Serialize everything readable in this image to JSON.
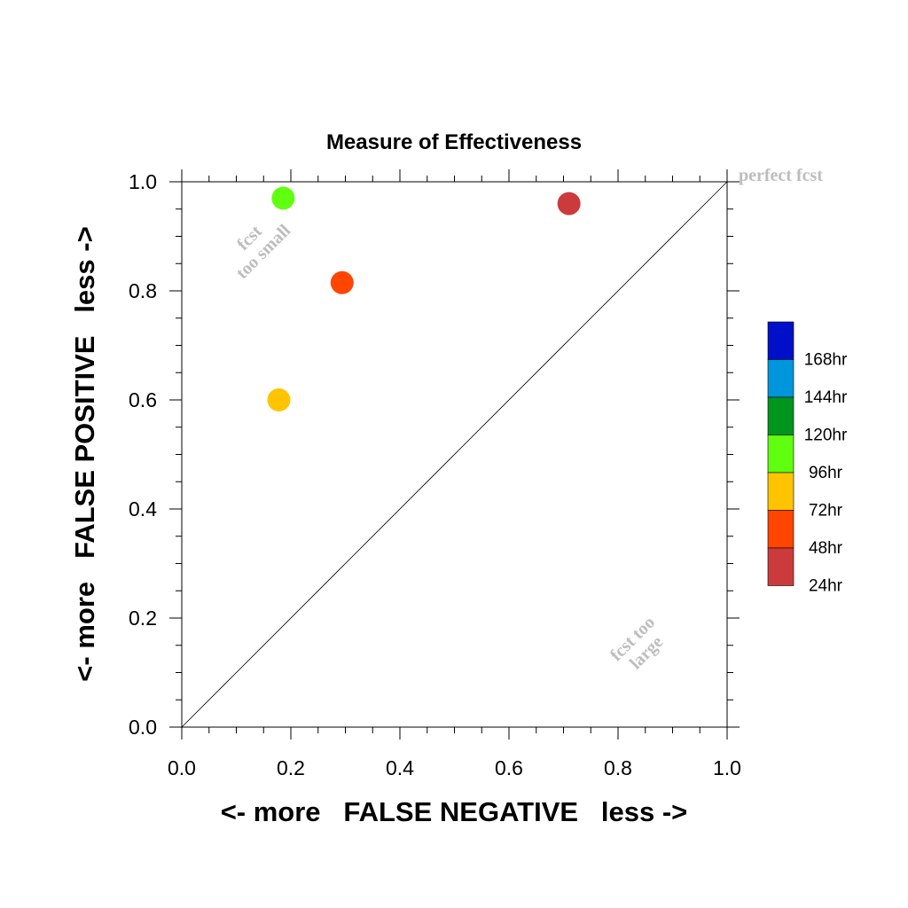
{
  "chart_data": {
    "type": "scatter",
    "title": "Measure of Effectiveness",
    "xlabel": "<- more   FALSE NEGATIVE   less ->",
    "ylabel": "<- more   FALSE POSITIVE   less ->",
    "xlim": [
      0.0,
      1.0
    ],
    "ylim": [
      0.0,
      1.0
    ],
    "xticks": [
      "0.0",
      "0.2",
      "0.4",
      "0.6",
      "0.8",
      "1.0"
    ],
    "yticks": [
      "0.0",
      "0.2",
      "0.4",
      "0.6",
      "0.8",
      "1.0"
    ],
    "grid": false,
    "diagonal_line": true,
    "annotations": {
      "perfect": "perfect fcst",
      "small_line1": "fcst",
      "small_line2": "too small",
      "large_line1": "fcst too",
      "large_line2": "large"
    },
    "series": [
      {
        "name": "24hr",
        "color": "#cc3b3b",
        "x": 0.71,
        "y": 0.96
      },
      {
        "name": "48hr",
        "color": "#ff4500",
        "x": 0.294,
        "y": 0.815
      },
      {
        "name": "72hr",
        "color": "#ffc400",
        "x": 0.178,
        "y": 0.6
      },
      {
        "name": "96hr",
        "color": "#5fff0f",
        "x": 0.186,
        "y": 0.97
      }
    ],
    "legend": {
      "placement": "right",
      "entries": [
        {
          "label": "168hr",
          "color": "#0010c8"
        },
        {
          "label": "144hr",
          "color": "#0096dc"
        },
        {
          "label": "120hr",
          "color": "#00961e"
        },
        {
          "label": "96hr",
          "color": "#5fff0f"
        },
        {
          "label": "72hr",
          "color": "#ffc400"
        },
        {
          "label": "48hr",
          "color": "#ff4500"
        },
        {
          "label": "24hr",
          "color": "#cc3b3b"
        }
      ]
    }
  }
}
